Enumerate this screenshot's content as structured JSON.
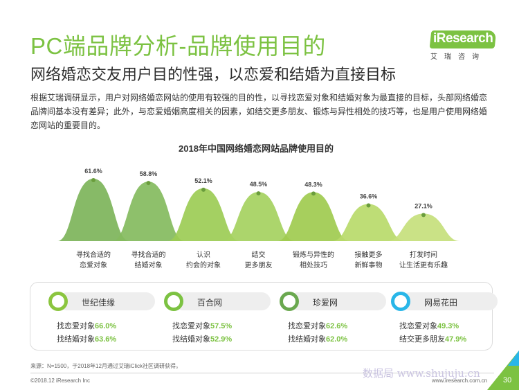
{
  "header": {
    "title": "PC端品牌分析-品牌使用目的",
    "subtitle": "网络婚恋交友用户目的性强，以恋爱和结婚为直接目标",
    "logo_text": "iResearch",
    "logo_cn": "艾瑞咨询"
  },
  "description": "根据艾瑞调研显示，用户对网络婚恋网站的使用有较强的目的性，以寻找恋爱对象和结婚对象为最直接的目标，头部网络婚恋品牌间基本没有差异；此外，与恋爱婚姻高度相关的因素，如结交更多朋友、锻炼与异性相处的技巧等，也是用户使用网络婚恋网站的重要目的。",
  "chart_data": {
    "type": "area",
    "title": "2018年中国网络婚恋网站品牌使用目的",
    "categories": [
      [
        "寻找合适的",
        "恋爱对象"
      ],
      [
        "寻找合适的",
        "结婚对象"
      ],
      [
        "认识",
        "约会的对象"
      ],
      [
        "结交",
        "更多朋友"
      ],
      [
        "锻炼与异性的",
        "相处技巧"
      ],
      [
        "接触更多",
        "新鲜事物"
      ],
      [
        "打发时间",
        "让生活更有乐趣"
      ]
    ],
    "values": [
      61.6,
      58.8,
      52.1,
      48.5,
      48.3,
      36.6,
      27.1
    ],
    "labels": [
      "61.6%",
      "58.8%",
      "52.1%",
      "48.5%",
      "48.3%",
      "36.6%",
      "27.1%"
    ],
    "colors": [
      "#7db45a",
      "#84bb5e",
      "#9ccc55",
      "#a5d160",
      "#9fcb4f",
      "#b9da6a",
      "#c6e07c"
    ],
    "ylim": [
      0,
      70
    ]
  },
  "brands": [
    {
      "name": "世纪佳缘",
      "ring_color": "#8bc53f",
      "lines": [
        {
          "label": "找恋爱对象",
          "value": "66.0%"
        },
        {
          "label": "找结婚对象",
          "value": "63.6%"
        }
      ]
    },
    {
      "name": "百合网",
      "ring_color": "#7cc242",
      "lines": [
        {
          "label": "找恋爱对象",
          "value": "57.5%"
        },
        {
          "label": "找结婚对象",
          "value": "52.9%"
        }
      ]
    },
    {
      "name": "珍爱网",
      "ring_color": "#6aa84f",
      "lines": [
        {
          "label": "找恋爱对象",
          "value": "62.6%"
        },
        {
          "label": "找结婚对象",
          "value": "62.0%"
        }
      ]
    },
    {
      "name": "网易花田",
      "ring_color": "#29b6e8",
      "lines": [
        {
          "label": "找恋爱对象",
          "value": "49.3%"
        },
        {
          "label": "结交更多朋友",
          "value": "47.9%"
        }
      ]
    }
  ],
  "footer": {
    "source": "来源：N=1500，于2018年12月通过艾瑞iClick社区调研获得。",
    "copyright": "©2018.12 iResearch Inc",
    "watermark": "数据局 www.shujuju.cn",
    "site": "www.iresearch.com.cn",
    "page": "30"
  }
}
